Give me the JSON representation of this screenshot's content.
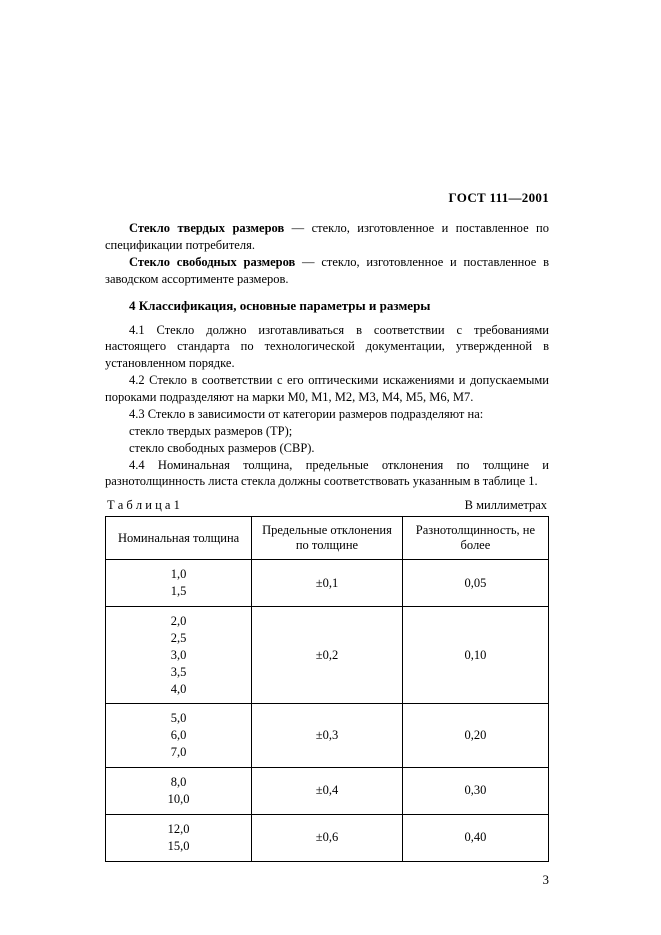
{
  "doc_id": "ГОСТ 111—2001",
  "def1_term": "Стекло твердых размеров",
  "def1_text": " — стекло, изготовленное и поставленное по спецификации потребителя.",
  "def2_term": "Стекло свободных размеров",
  "def2_text": " — стекло, изготовленное и поставленное в заводском ассортименте размеров.",
  "section_title": "4 Классификация, основные параметры и размеры",
  "p41": "4.1 Стекло должно изготавливаться в соответствии с требованиями настоящего стандарта по технологической документации, утвержденной в установленном порядке.",
  "p42": "4.2 Стекло в соответствии с его оптическими искажениями и допускаемыми пороками подразделяют на марки М0, М1, М2, М3, М4, М5, М6, М7.",
  "p43a": "4.3 Стекло в зависимости от категории размеров подразделяют на:",
  "p43b": "стекло твердых размеров (ТР);",
  "p43c": "стекло свободных размеров (СВР).",
  "p44": "4.4 Номинальная толщина, предельные отклонения по толщине и разнотолщинность листа стекла должны соответствовать указанным в таблице 1.",
  "table_label": "Т а б л и ц а   1",
  "table_units": "В миллиметрах",
  "table": {
    "headers": [
      "Номинальная толщина",
      "Предельные отклонения по толщине",
      "Разнотолщинность, не более"
    ],
    "rows": [
      {
        "c1": "1,0\n1,5",
        "c2": "±0,1",
        "c3": "0,05"
      },
      {
        "c1": "2,0\n2,5\n3,0\n3,5\n4,0",
        "c2": "±0,2",
        "c3": "0,10"
      },
      {
        "c1": "5,0\n6,0\n7,0",
        "c2": "±0,3",
        "c3": "0,20"
      },
      {
        "c1": "8,0\n10,0",
        "c2": "±0,4",
        "c3": "0,30"
      },
      {
        "c1": "12,0\n15,0",
        "c2": "±0,6",
        "c3": "0,40"
      }
    ]
  },
  "page_number": "3"
}
